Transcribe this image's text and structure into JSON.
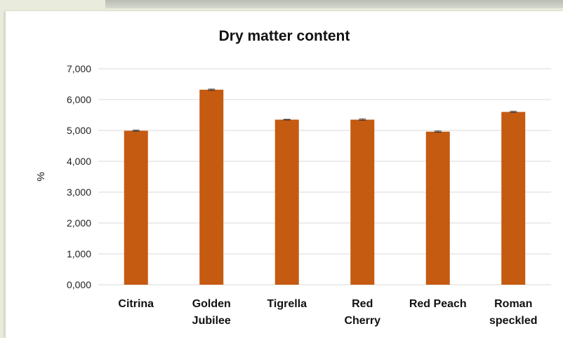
{
  "chart_data": {
    "type": "bar",
    "title": "Dry matter content",
    "xlabel": "",
    "ylabel": "%",
    "ylim": [
      0,
      7
    ],
    "yticks": [
      "0,000",
      "1,000",
      "2,000",
      "3,000",
      "4,000",
      "5,000",
      "6,000",
      "7,000"
    ],
    "categories": [
      [
        "Citrina"
      ],
      [
        "Golden",
        "Jubilee"
      ],
      [
        "Tigrella"
      ],
      [
        "Red",
        "Cherry"
      ],
      [
        "Red Peach"
      ],
      [
        "Roman",
        "speckled"
      ]
    ],
    "values": [
      4.99,
      6.32,
      5.35,
      5.35,
      4.96,
      5.6
    ],
    "errors": [
      0.02,
      0.02,
      0.01,
      0.02,
      0.02,
      0.02
    ],
    "grid": true,
    "colors": {
      "bar": "#c55a11",
      "grid": "#d9d9d9",
      "error": "#333333"
    }
  }
}
